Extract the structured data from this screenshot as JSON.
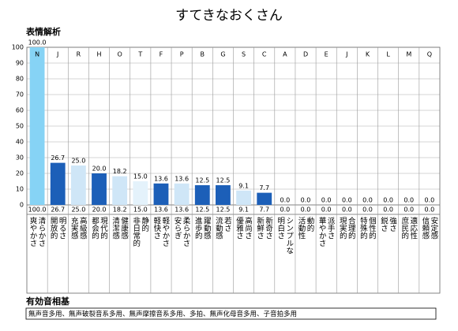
{
  "chart_data": {
    "type": "bar",
    "title": "すてきなおくさん",
    "subtitle": "表情解析",
    "categories": [
      "N",
      "J",
      "R",
      "H",
      "O",
      "T",
      "F",
      "P",
      "B",
      "G",
      "S",
      "C",
      "A",
      "D",
      "E",
      "J",
      "K",
      "L",
      "M",
      "Q"
    ],
    "labels": [
      [
        "爽やかさ",
        "清らかさ"
      ],
      [
        "開放的",
        "明るさ"
      ],
      [
        "充実感",
        "高級感"
      ],
      [
        "都会的",
        "現代的"
      ],
      [
        "清潔感",
        "健康感"
      ],
      [
        "非日常的",
        "静的"
      ],
      [
        "軽快さ",
        "軽やかさ"
      ],
      [
        "安らぎ",
        "柔らかさ"
      ],
      [
        "進歩的",
        "躍動感"
      ],
      [
        "流動感",
        "若さ"
      ],
      [
        "優雅さ",
        "高尚さ"
      ],
      [
        "新鮮さ",
        "新奇さ"
      ],
      [
        "明白さ",
        "シンプルな"
      ],
      [
        "活動性",
        "動的"
      ],
      [
        "華やかさ",
        "派手さ"
      ],
      [
        "現実的",
        "合理的"
      ],
      [
        "特殊的",
        "個性的"
      ],
      [
        "鋭さ",
        "強さ"
      ],
      [
        "庶民的",
        "適応性"
      ],
      [
        "信頼感",
        "安定感"
      ]
    ],
    "values": [
      100,
      26.7,
      25,
      20,
      18.2,
      15,
      13.6,
      13.6,
      12.5,
      12.5,
      9.1,
      7.7,
      0,
      0,
      0,
      0,
      0,
      0,
      0,
      0
    ],
    "value_labels": [
      "100.0",
      "26.7",
      "25.0",
      "20.0",
      "18.2",
      "15.0",
      "13.6",
      "13.6",
      "12.5",
      "12.5",
      "9.1",
      "7.7",
      "0.0",
      "0.0",
      "0.0",
      "0.0",
      "0.0",
      "0.0",
      "0.0",
      "0.0"
    ],
    "colors": [
      "#86d3f5",
      "#1c5fb8",
      "#cfe6f7",
      "#1c5fb8",
      "#cfe6f7",
      "#e4f2fb",
      "#1c5fb8",
      "#cfe6f7",
      "#1c5fb8",
      "#1c5fb8",
      "#cfe6f7",
      "#1c5fb8",
      "#cfe6f7",
      "#cfe6f7",
      "#cfe6f7",
      "#cfe6f7",
      "#cfe6f7",
      "#cfe6f7",
      "#cfe6f7",
      "#cfe6f7"
    ],
    "ylim": [
      0,
      100
    ],
    "yticks": [
      0,
      10,
      20,
      30,
      40,
      50,
      60,
      70,
      80,
      90,
      100
    ],
    "grid": true
  },
  "basis": {
    "title": "有効音相基",
    "text": "無声音多用、無声破裂音系多用、無声摩擦音系多用、多拍、無声化母音多用、子音拍多用"
  }
}
